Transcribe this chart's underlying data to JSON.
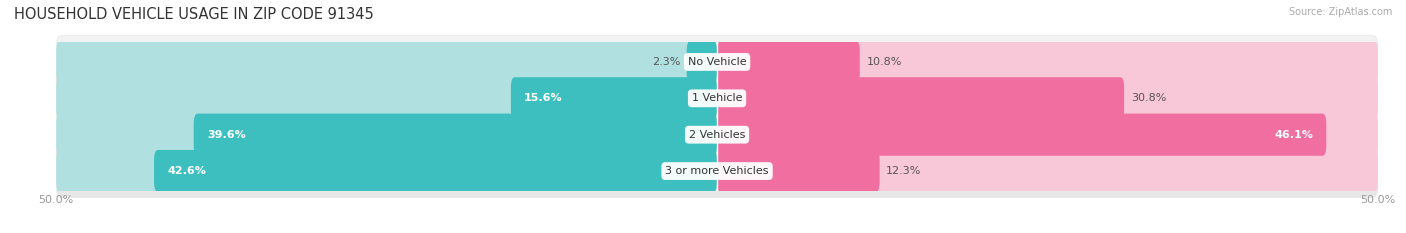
{
  "title": "HOUSEHOLD VEHICLE USAGE IN ZIP CODE 91345",
  "source": "Source: ZipAtlas.com",
  "categories": [
    "No Vehicle",
    "1 Vehicle",
    "2 Vehicles",
    "3 or more Vehicles"
  ],
  "owner_values": [
    2.3,
    15.6,
    39.6,
    42.6
  ],
  "renter_values": [
    10.8,
    30.8,
    46.1,
    12.3
  ],
  "owner_color": "#3dbfbf",
  "renter_color": "#f06fa0",
  "owner_color_light": "#b0e0e0",
  "renter_color_light": "#f9c8d8",
  "row_bg_color_odd": "#f0f0f0",
  "row_bg_color_even": "#e8e8e8",
  "axis_max": 50.0,
  "title_fontsize": 10.5,
  "label_fontsize": 8,
  "value_fontsize": 8,
  "tick_fontsize": 8,
  "background_color": "#ffffff"
}
